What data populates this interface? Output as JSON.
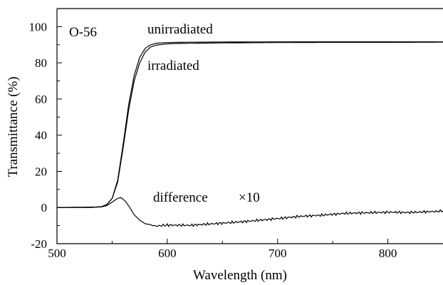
{
  "chart_data": {
    "type": "line",
    "xlabel": "Wavelength (nm)",
    "ylabel": "Transmittance (%)",
    "xlim": [
      500,
      850
    ],
    "ylim": [
      -20,
      110
    ],
    "grid": false,
    "x_major_ticks": [
      500,
      600,
      700,
      800
    ],
    "x_tick_labels": [
      "500",
      "600",
      "700",
      "800"
    ],
    "y_major_ticks": [
      -20,
      0,
      20,
      40,
      60,
      80,
      100
    ],
    "y_tick_labels": [
      "-20",
      "0",
      "20",
      "40",
      "60",
      "80",
      "100"
    ],
    "annotations": {
      "sample": "O-56",
      "unirradiated": "unirradiated",
      "irradiated": "irradiated",
      "difference": "difference",
      "scale": "×10"
    },
    "series": [
      {
        "name": "unirradiated",
        "x": [
          500,
          530,
          540,
          545,
          550,
          555,
          560,
          565,
          570,
          575,
          580,
          585,
          590,
          600,
          620,
          650,
          700,
          750,
          800,
          850
        ],
        "y": [
          0,
          0,
          0.4,
          1.5,
          5,
          15,
          35,
          57,
          73,
          83,
          88,
          90,
          90.8,
          91.2,
          91.4,
          91.5,
          91.6,
          91.6,
          91.6,
          91.6
        ]
      },
      {
        "name": "irradiated",
        "x": [
          500,
          530,
          540,
          545,
          550,
          555,
          560,
          565,
          570,
          575,
          580,
          585,
          590,
          600,
          620,
          650,
          700,
          750,
          800,
          850
        ],
        "y": [
          0,
          0,
          0.4,
          1.5,
          5,
          14,
          33,
          54,
          70,
          80,
          86,
          88.8,
          89.8,
          90.5,
          90.8,
          91,
          91.2,
          91.3,
          91.3,
          91.4
        ]
      },
      {
        "name": "difference",
        "x": [
          500,
          540,
          545,
          550,
          555,
          558,
          562,
          566,
          570,
          575,
          580,
          590,
          600,
          620,
          640,
          660,
          680,
          700,
          720,
          740,
          760,
          780,
          800,
          820,
          840,
          850
        ],
        "y": [
          0,
          0.3,
          1,
          3,
          5,
          5.5,
          3.5,
          0,
          -4,
          -7,
          -9,
          -10,
          -10,
          -10,
          -9,
          -8,
          -7,
          -6,
          -5,
          -4.5,
          -3.5,
          -3,
          -2.5,
          -2.5,
          -2,
          -2
        ]
      }
    ]
  }
}
